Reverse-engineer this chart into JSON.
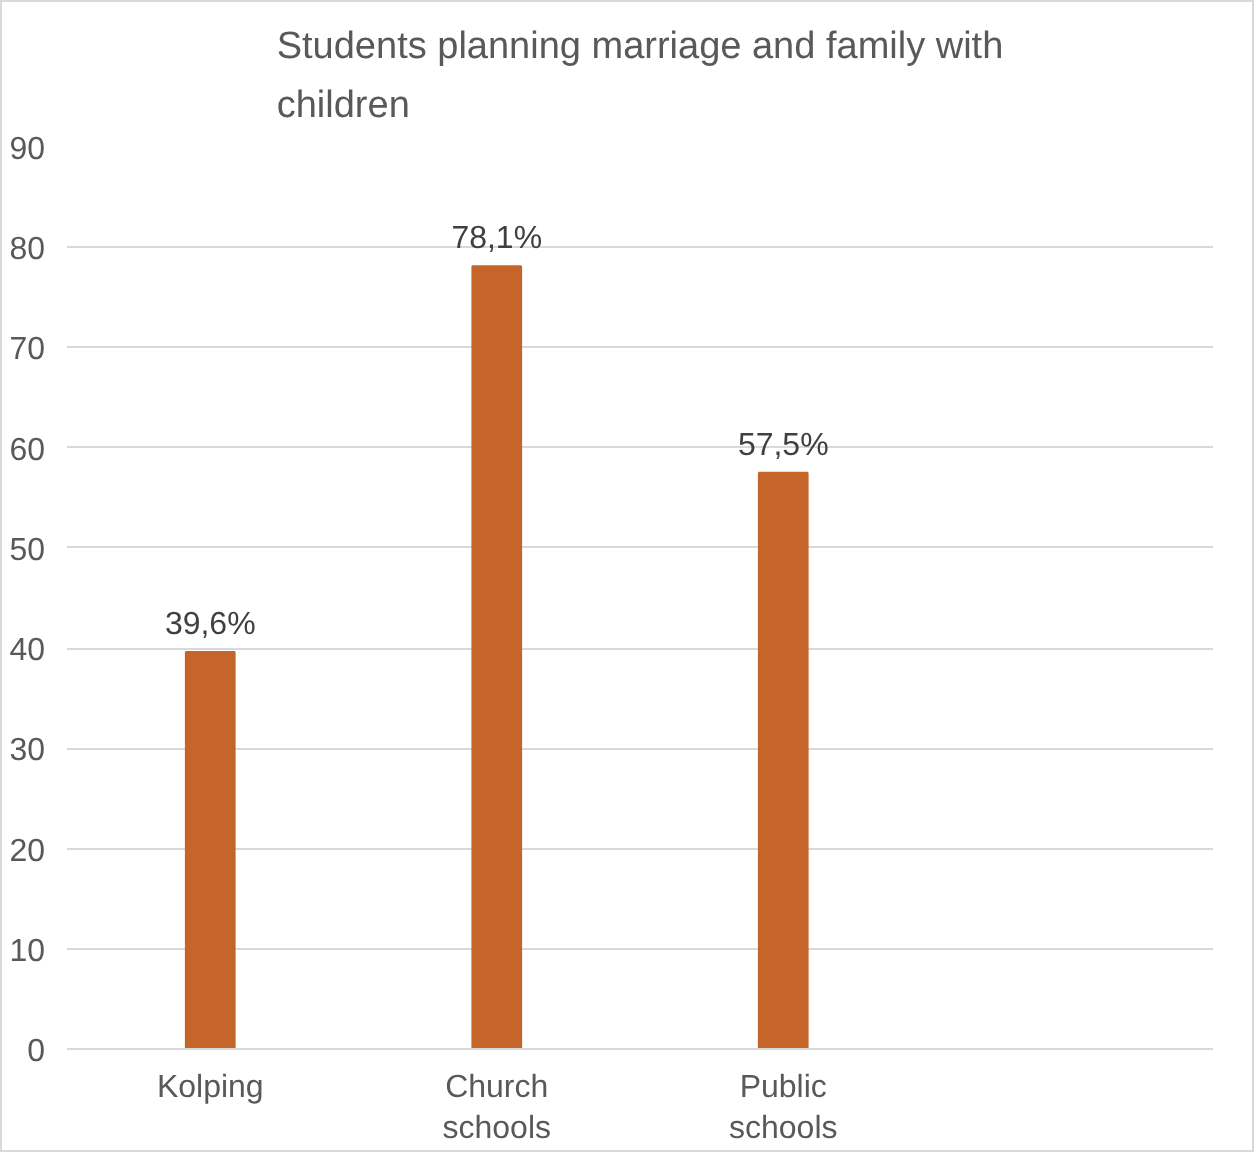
{
  "chart_data": {
    "type": "bar",
    "title": "Students planning marriage and family with children",
    "categories": [
      "Kolping",
      "Church schools",
      "Public schools",
      null
    ],
    "values": [
      39.6,
      78.1,
      57.5,
      null
    ],
    "value_labels": [
      "39,6%",
      "78,1%",
      "57,5%",
      null
    ],
    "color": "#c5652a",
    "ylim": [
      0,
      90
    ],
    "yticks": [
      0,
      10,
      20,
      30,
      40,
      50,
      60,
      70,
      80,
      90
    ],
    "grid": "y"
  }
}
